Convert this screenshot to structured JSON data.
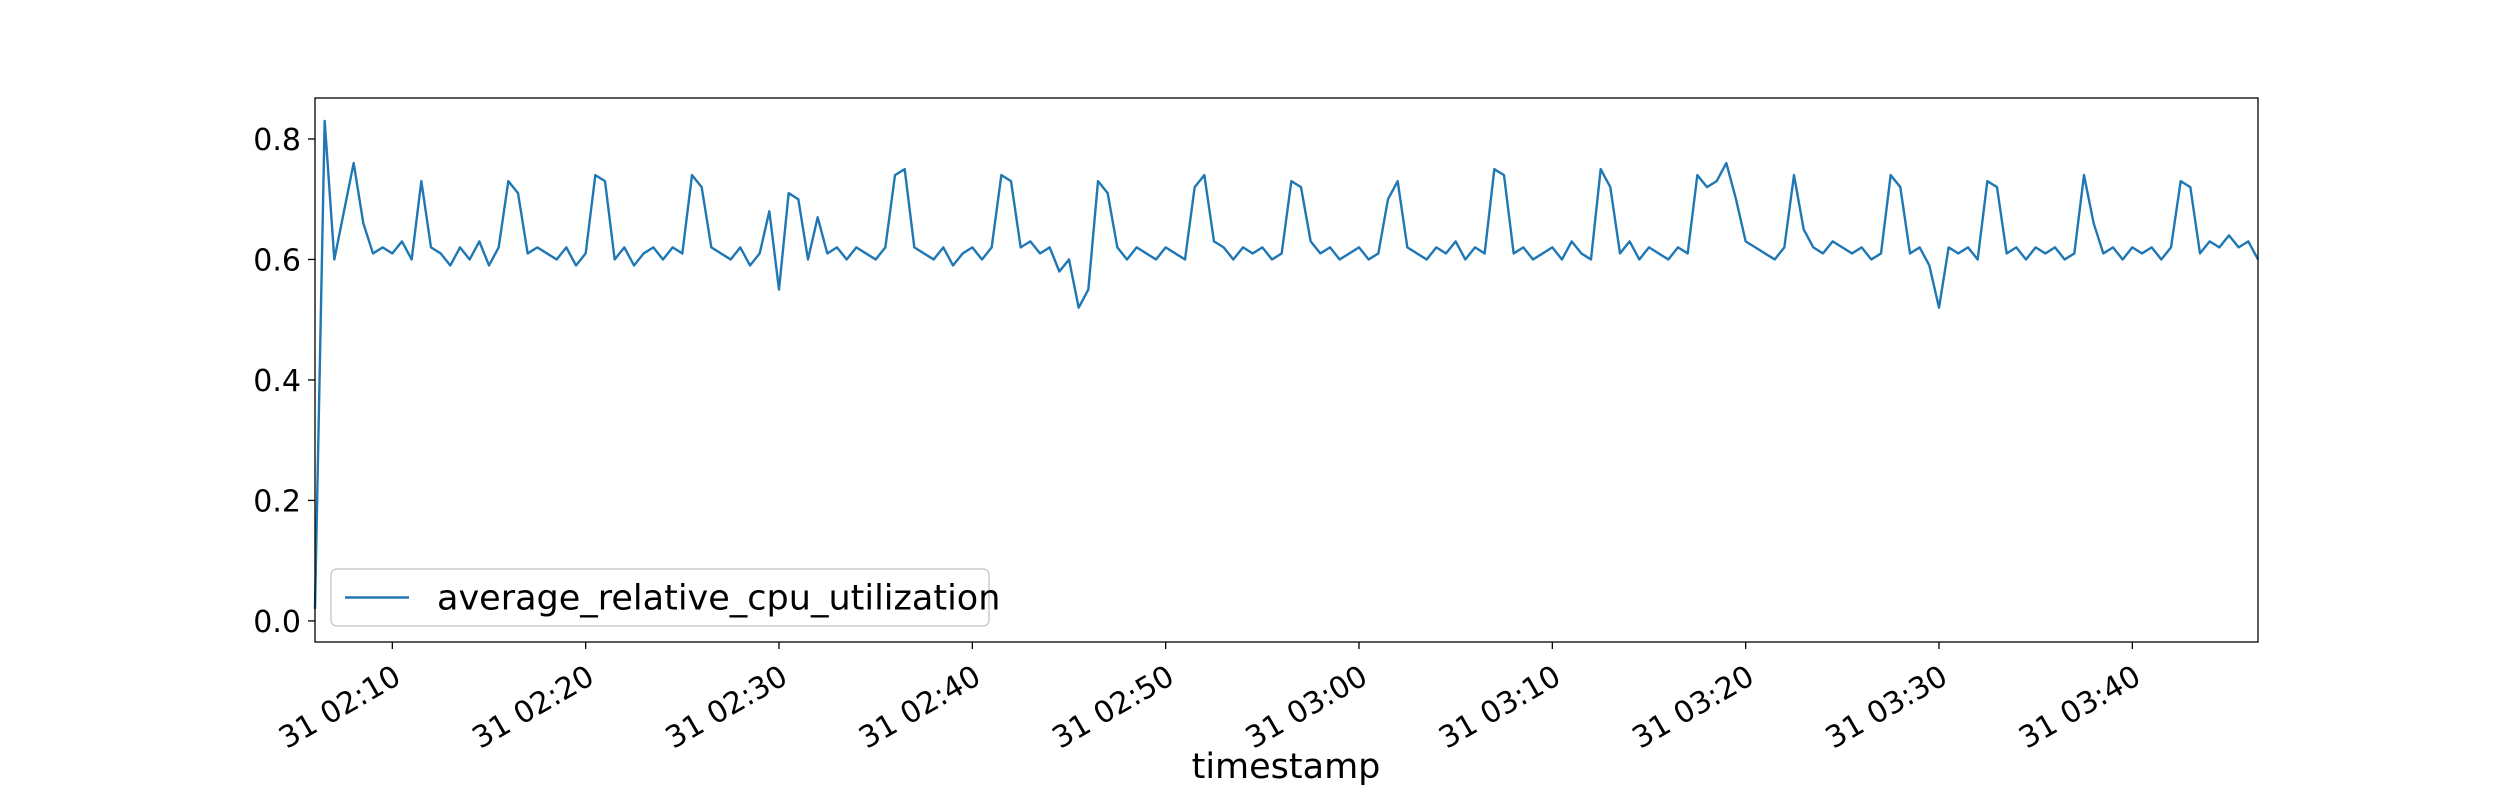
{
  "chart_data": {
    "type": "line",
    "xlabel": "timestamp",
    "x": [
      "31 02:06:00",
      "31 02:06:30",
      "31 02:07:00",
      "31 02:07:30",
      "31 02:08:00",
      "31 02:08:30",
      "31 02:09:00",
      "31 02:09:30",
      "31 02:10:00",
      "31 02:10:30",
      "31 02:11:00",
      "31 02:11:30",
      "31 02:12:00",
      "31 02:12:30",
      "31 02:13:00",
      "31 02:13:30",
      "31 02:14:00",
      "31 02:14:30",
      "31 02:15:00",
      "31 02:15:30",
      "31 02:16:00",
      "31 02:16:30",
      "31 02:17:00",
      "31 02:17:30",
      "31 02:18:00",
      "31 02:18:30",
      "31 02:19:00",
      "31 02:19:30",
      "31 02:20:00",
      "31 02:20:30",
      "31 02:21:00",
      "31 02:21:30",
      "31 02:22:00",
      "31 02:22:30",
      "31 02:23:00",
      "31 02:23:30",
      "31 02:24:00",
      "31 02:24:30",
      "31 02:25:00",
      "31 02:25:30",
      "31 02:26:00",
      "31 02:26:30",
      "31 02:27:00",
      "31 02:27:30",
      "31 02:28:00",
      "31 02:28:30",
      "31 02:29:00",
      "31 02:29:30",
      "31 02:30:00",
      "31 02:30:30",
      "31 02:31:00",
      "31 02:31:30",
      "31 02:32:00",
      "31 02:32:30",
      "31 02:33:00",
      "31 02:33:30",
      "31 02:34:00",
      "31 02:34:30",
      "31 02:35:00",
      "31 02:35:30",
      "31 02:36:00",
      "31 02:36:30",
      "31 02:37:00",
      "31 02:37:30",
      "31 02:38:00",
      "31 02:38:30",
      "31 02:39:00",
      "31 02:39:30",
      "31 02:40:00",
      "31 02:40:30",
      "31 02:41:00",
      "31 02:41:30",
      "31 02:42:00",
      "31 02:42:30",
      "31 02:43:00",
      "31 02:43:30",
      "31 02:44:00",
      "31 02:44:30",
      "31 02:45:00",
      "31 02:45:30",
      "31 02:46:00",
      "31 02:46:30",
      "31 02:47:00",
      "31 02:47:30",
      "31 02:48:00",
      "31 02:48:30",
      "31 02:49:00",
      "31 02:49:30",
      "31 02:50:00",
      "31 02:50:30",
      "31 02:51:00",
      "31 02:51:30",
      "31 02:52:00",
      "31 02:52:30",
      "31 02:53:00",
      "31 02:53:30",
      "31 02:54:00",
      "31 02:54:30",
      "31 02:55:00",
      "31 02:55:30",
      "31 02:56:00",
      "31 02:56:30",
      "31 02:57:00",
      "31 02:57:30",
      "31 02:58:00",
      "31 02:58:30",
      "31 02:59:00",
      "31 02:59:30",
      "31 03:00:00",
      "31 03:00:30",
      "31 03:01:00",
      "31 03:01:30",
      "31 03:02:00",
      "31 03:02:30",
      "31 03:03:00",
      "31 03:03:30",
      "31 03:04:00",
      "31 03:04:30",
      "31 03:05:00",
      "31 03:05:30",
      "31 03:06:00",
      "31 03:06:30",
      "31 03:07:00",
      "31 03:07:30",
      "31 03:08:00",
      "31 03:08:30",
      "31 03:09:00",
      "31 03:09:30",
      "31 03:10:00",
      "31 03:10:30",
      "31 03:11:00",
      "31 03:11:30",
      "31 03:12:00",
      "31 03:12:30",
      "31 03:13:00",
      "31 03:13:30",
      "31 03:14:00",
      "31 03:14:30",
      "31 03:15:00",
      "31 03:15:30",
      "31 03:16:00",
      "31 03:16:30",
      "31 03:17:00",
      "31 03:17:30",
      "31 03:18:00",
      "31 03:18:30",
      "31 03:19:00",
      "31 03:19:30",
      "31 03:20:00",
      "31 03:20:30",
      "31 03:21:00",
      "31 03:21:30",
      "31 03:22:00",
      "31 03:22:30",
      "31 03:23:00",
      "31 03:23:30",
      "31 03:24:00",
      "31 03:24:30",
      "31 03:25:00",
      "31 03:25:30",
      "31 03:26:00",
      "31 03:26:30",
      "31 03:27:00",
      "31 03:27:30",
      "31 03:28:00",
      "31 03:28:30",
      "31 03:29:00",
      "31 03:29:30",
      "31 03:30:00",
      "31 03:30:30",
      "31 03:31:00",
      "31 03:31:30",
      "31 03:32:00",
      "31 03:32:30",
      "31 03:33:00",
      "31 03:33:30",
      "31 03:34:00",
      "31 03:34:30",
      "31 03:35:00",
      "31 03:35:30",
      "31 03:36:00",
      "31 03:36:30",
      "31 03:37:00",
      "31 03:37:30",
      "31 03:38:00",
      "31 03:38:30",
      "31 03:39:00",
      "31 03:39:30",
      "31 03:40:00",
      "31 03:40:30",
      "31 03:41:00",
      "31 03:41:30",
      "31 03:42:00",
      "31 03:42:30",
      "31 03:43:00",
      "31 03:43:30",
      "31 03:44:00",
      "31 03:44:30",
      "31 03:45:00",
      "31 03:45:30",
      "31 03:46:00",
      "31 03:46:30"
    ],
    "series": [
      {
        "name": "average_relative_cpu_utilization",
        "color": "#1f77b4",
        "values": [
          0.02,
          0.83,
          0.6,
          0.68,
          0.76,
          0.66,
          0.61,
          0.62,
          0.61,
          0.63,
          0.6,
          0.73,
          0.62,
          0.61,
          0.59,
          0.62,
          0.6,
          0.63,
          0.59,
          0.62,
          0.73,
          0.71,
          0.61,
          0.62,
          0.61,
          0.6,
          0.62,
          0.59,
          0.61,
          0.74,
          0.73,
          0.6,
          0.62,
          0.59,
          0.61,
          0.62,
          0.6,
          0.62,
          0.61,
          0.74,
          0.72,
          0.62,
          0.61,
          0.6,
          0.62,
          0.59,
          0.61,
          0.68,
          0.55,
          0.71,
          0.7,
          0.6,
          0.67,
          0.61,
          0.62,
          0.6,
          0.62,
          0.61,
          0.6,
          0.62,
          0.74,
          0.75,
          0.62,
          0.61,
          0.6,
          0.62,
          0.59,
          0.61,
          0.62,
          0.6,
          0.62,
          0.74,
          0.73,
          0.62,
          0.63,
          0.61,
          0.62,
          0.58,
          0.6,
          0.52,
          0.55,
          0.73,
          0.71,
          0.62,
          0.6,
          0.62,
          0.61,
          0.6,
          0.62,
          0.61,
          0.6,
          0.72,
          0.74,
          0.63,
          0.62,
          0.6,
          0.62,
          0.61,
          0.62,
          0.6,
          0.61,
          0.73,
          0.72,
          0.63,
          0.61,
          0.62,
          0.6,
          0.61,
          0.62,
          0.6,
          0.61,
          0.7,
          0.73,
          0.62,
          0.61,
          0.6,
          0.62,
          0.61,
          0.63,
          0.6,
          0.62,
          0.61,
          0.75,
          0.74,
          0.61,
          0.62,
          0.6,
          0.61,
          0.62,
          0.6,
          0.63,
          0.61,
          0.6,
          0.75,
          0.72,
          0.61,
          0.63,
          0.6,
          0.62,
          0.61,
          0.6,
          0.62,
          0.61,
          0.74,
          0.72,
          0.73,
          0.76,
          0.7,
          0.63,
          0.62,
          0.61,
          0.6,
          0.62,
          0.74,
          0.65,
          0.62,
          0.61,
          0.63,
          0.62,
          0.61,
          0.62,
          0.6,
          0.61,
          0.74,
          0.72,
          0.61,
          0.62,
          0.59,
          0.52,
          0.62,
          0.61,
          0.62,
          0.6,
          0.73,
          0.72,
          0.61,
          0.62,
          0.6,
          0.62,
          0.61,
          0.62,
          0.6,
          0.61,
          0.74,
          0.66,
          0.61,
          0.62,
          0.6,
          0.62,
          0.61,
          0.62,
          0.6,
          0.62,
          0.73,
          0.72,
          0.61,
          0.63,
          0.62,
          0.64,
          0.62,
          0.63,
          0.6
        ]
      }
    ],
    "xlim": [
      "31 02:06:00",
      "31 03:46:30"
    ],
    "xticks": [
      "31 02:10",
      "31 02:20",
      "31 02:30",
      "31 02:40",
      "31 02:50",
      "31 03:00",
      "31 03:10",
      "31 03:20",
      "31 03:30",
      "31 03:40"
    ],
    "ylim": [
      -0.035,
      0.868
    ],
    "yticks": [
      {
        "value": 0,
        "label": "0.0"
      },
      0.2,
      0.4,
      0.6,
      0.8
    ],
    "legend": "lower left"
  }
}
